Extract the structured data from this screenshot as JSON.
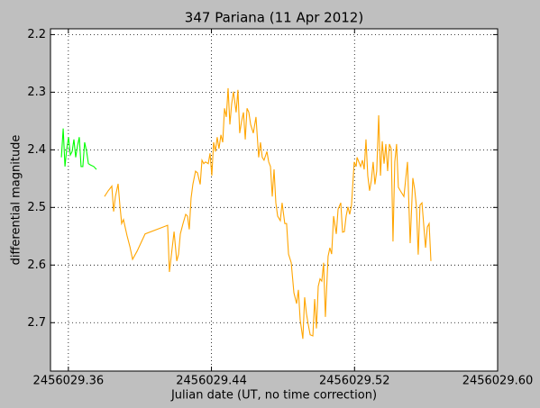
{
  "chart_data": {
    "type": "line",
    "title": "347 Pariana (11 Apr 2012)",
    "xlabel": "Julian date (UT, no time correction)",
    "ylabel": "differential magnitude",
    "xlim": [
      2456029.35,
      2456029.6
    ],
    "ylim": [
      2.19,
      2.784
    ],
    "y_inverted": true,
    "xticks": [
      2456029.36,
      2456029.44,
      2456029.52,
      {
        "value": 2456029.6,
        "label": "2456029.60"
      }
    ],
    "yticks": [
      2.2,
      2.3,
      2.4,
      2.5,
      2.6,
      2.7
    ],
    "grid": true,
    "series": [
      {
        "color": "#00ff00",
        "x": [
          2456029.3561,
          2456029.3571,
          2456029.3581,
          2456029.3591,
          2456029.3601,
          2456029.3611,
          2456029.3621,
          2456029.3631,
          2456029.3641,
          2456029.3651,
          2456029.3661,
          2456029.3671,
          2456029.3681,
          2456029.3691,
          2456029.3702,
          2456029.3712,
          2456029.3722,
          2456029.3742,
          2456029.3757
        ],
        "values": [
          2.413,
          2.363,
          2.429,
          2.398,
          2.378,
          2.409,
          2.403,
          2.382,
          2.413,
          2.393,
          2.378,
          2.429,
          2.429,
          2.387,
          2.403,
          2.424,
          2.426,
          2.429,
          2.434
        ]
      },
      {
        "color": "#ffa500",
        "x": [
          2456029.3802,
          2456029.3823,
          2456029.3843,
          2456029.3853,
          2456029.3863,
          2456029.3878,
          2456029.3888,
          2456029.3898,
          2456029.3908,
          2456029.3928,
          2456029.3944,
          2456029.3959,
          2456029.3984,
          2456029.4029,
          2456029.4155,
          2456029.4165,
          2456029.4191,
          2456029.4206,
          2456029.4216,
          2456029.4226,
          2456029.4241,
          2456029.4256,
          2456029.4266,
          2456029.4276,
          2456029.4286,
          2456029.4296,
          2456029.4311,
          2456029.4322,
          2456029.4337,
          2456029.4347,
          2456029.4357,
          2456029.4367,
          2456029.4382,
          2456029.4392,
          2456029.4402,
          2456029.4412,
          2456029.4422,
          2456029.4432,
          2456029.4442,
          2456029.4453,
          2456029.4463,
          2456029.4473,
          2456029.4483,
          2456029.4493,
          2456029.4503,
          2456029.4513,
          2456029.4523,
          2456029.4538,
          2456029.4548,
          2456029.4558,
          2456029.4568,
          2456029.4579,
          2456029.4589,
          2456029.4599,
          2456029.4609,
          2456029.4619,
          2456029.4634,
          2456029.4649,
          2456029.4664,
          2456029.4674,
          2456029.4684,
          2456029.4694,
          2456029.471,
          2456029.472,
          2456029.473,
          2456029.474,
          2456029.475,
          2456029.476,
          2456029.477,
          2456029.4785,
          2456029.4795,
          2456029.481,
          2456029.482,
          2456029.4831,
          2456029.4846,
          2456029.4861,
          2456029.4876,
          2456029.4886,
          2456029.4896,
          2456029.4911,
          2456029.4921,
          2456029.4931,
          2456029.4941,
          2456029.4952,
          2456029.4967,
          2456029.4977,
          2456029.4987,
          2456029.4997,
          2456029.5007,
          2456029.5017,
          2456029.5027,
          2456029.5037,
          2456029.5052,
          2456029.5062,
          2456029.5072,
          2456029.5083,
          2456029.5098,
          2456029.5108,
          2456029.5123,
          2456029.5133,
          2456029.5143,
          2456029.5153,
          2456029.5163,
          2456029.5173,
          2456029.5183,
          2456029.5198,
          2456029.5209,
          2456029.5214,
          2456029.5224,
          2456029.5234,
          2456029.5244,
          2456029.5254,
          2456029.5264,
          2456029.5274,
          2456029.5284,
          2456029.5294,
          2456029.5304,
          2456029.5314,
          2456029.5324,
          2456029.5335,
          2456029.5345,
          2456029.5355,
          2456029.5365,
          2456029.5375,
          2456029.5385,
          2456029.5395,
          2456029.5405,
          2456029.5415,
          2456029.5425,
          2456029.5435,
          2456029.5445,
          2456029.5456,
          2456029.5476,
          2456029.5496,
          2456029.5511,
          2456029.5526,
          2456029.5536,
          2456029.5546,
          2456029.5556,
          2456029.5566,
          2456029.5577,
          2456029.5587,
          2456029.5597,
          2456029.5607,
          2456029.5617,
          2456029.5627
        ],
        "values": [
          2.481,
          2.471,
          2.463,
          2.507,
          2.481,
          2.459,
          2.496,
          2.528,
          2.521,
          2.549,
          2.568,
          2.59,
          2.576,
          2.546,
          2.531,
          2.612,
          2.542,
          2.593,
          2.581,
          2.546,
          2.528,
          2.512,
          2.515,
          2.538,
          2.484,
          2.46,
          2.437,
          2.44,
          2.46,
          2.418,
          2.424,
          2.421,
          2.424,
          2.406,
          2.445,
          2.387,
          2.403,
          2.378,
          2.398,
          2.374,
          2.387,
          2.328,
          2.343,
          2.293,
          2.356,
          2.32,
          2.299,
          2.335,
          2.296,
          2.371,
          2.351,
          2.335,
          2.382,
          2.328,
          2.335,
          2.356,
          2.371,
          2.343,
          2.413,
          2.387,
          2.413,
          2.418,
          2.403,
          2.421,
          2.429,
          2.481,
          2.434,
          2.492,
          2.515,
          2.523,
          2.492,
          2.528,
          2.528,
          2.581,
          2.596,
          2.648,
          2.667,
          2.643,
          2.695,
          2.728,
          2.656,
          2.684,
          2.703,
          2.721,
          2.723,
          2.659,
          2.71,
          2.637,
          2.624,
          2.628,
          2.596,
          2.69,
          2.585,
          2.57,
          2.581,
          2.515,
          2.546,
          2.503,
          2.492,
          2.543,
          2.542,
          2.515,
          2.499,
          2.512,
          2.496,
          2.421,
          2.429,
          2.413,
          2.421,
          2.429,
          2.418,
          2.434,
          2.382,
          2.445,
          2.471,
          2.453,
          2.421,
          2.46,
          2.437,
          2.34,
          2.445,
          2.385,
          2.424,
          2.39,
          2.437,
          2.39,
          2.398,
          2.559,
          2.421,
          2.39,
          2.465,
          2.471,
          2.481,
          2.421,
          2.562,
          2.449,
          2.468,
          2.499,
          2.582,
          2.496,
          2.492,
          2.531,
          2.57,
          2.534,
          2.528,
          2.593
        ]
      }
    ]
  }
}
